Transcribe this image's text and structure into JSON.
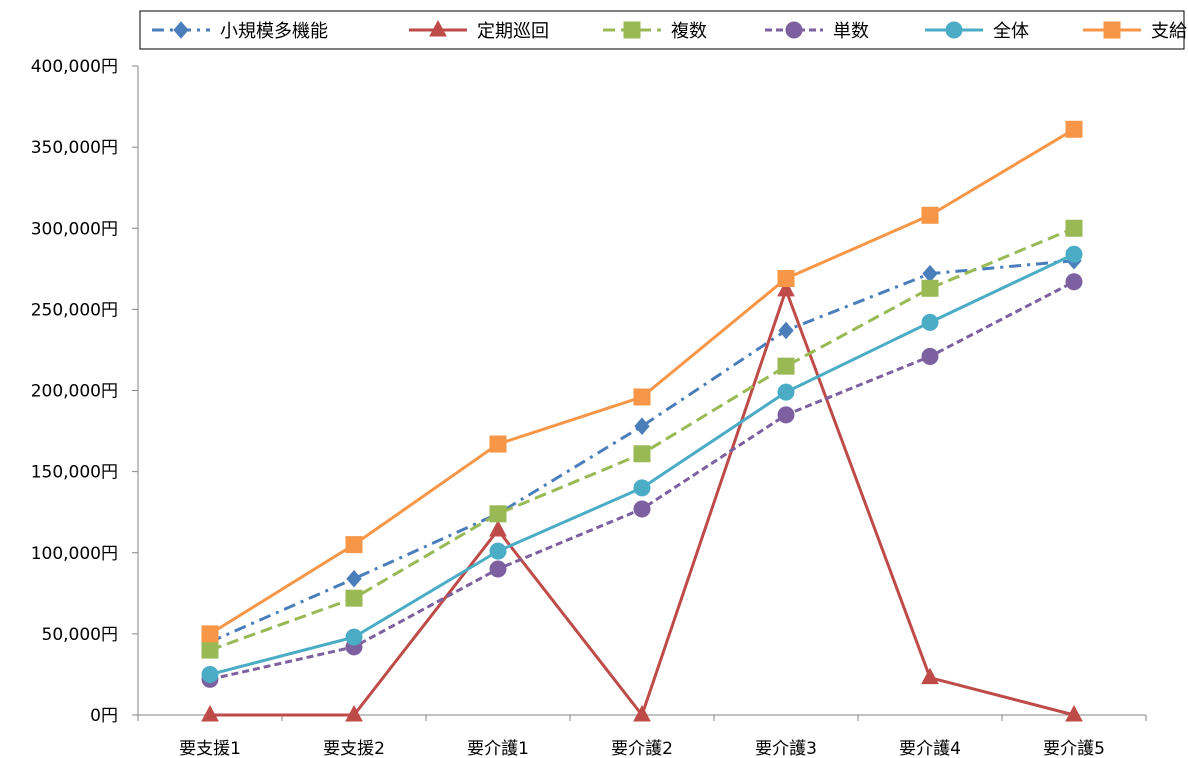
{
  "chart_data": {
    "type": "line",
    "title": "",
    "xlabel": "",
    "ylabel": "",
    "categories": [
      "要支援1",
      "要支援2",
      "要介護1",
      "要介護2",
      "要介護3",
      "要介護4",
      "要介護5"
    ],
    "ylim": [
      0,
      400000
    ],
    "yticks": [
      0,
      50000,
      100000,
      150000,
      200000,
      250000,
      300000,
      350000,
      400000
    ],
    "ytick_labels": [
      "0円",
      "50,000円",
      "100,000円",
      "150,000円",
      "200,000円",
      "250,000円",
      "300,000円",
      "350,000円",
      "400,000円"
    ],
    "grid": false,
    "legend_position": "top",
    "series": [
      {
        "name": "小規模多機能",
        "color": "#4a7ebb",
        "marker": "diamond",
        "dash": "12,6,3,6",
        "values": [
          45000,
          84000,
          124000,
          178000,
          237000,
          272000,
          280000
        ]
      },
      {
        "name": "定期巡回",
        "color": "#be4b48",
        "marker": "triangle",
        "dash": "",
        "values": [
          0,
          0,
          114000,
          0,
          262000,
          23000,
          0
        ]
      },
      {
        "name": "複数",
        "color": "#98b954",
        "marker": "square",
        "dash": "12,6",
        "values": [
          40000,
          72000,
          124000,
          161000,
          215000,
          263000,
          300000
        ]
      },
      {
        "name": "単数",
        "color": "#7d60a0",
        "marker": "circle",
        "dash": "7,4",
        "values": [
          22000,
          42000,
          90000,
          127000,
          185000,
          221000,
          267000
        ]
      },
      {
        "name": "全体",
        "color": "#4bacc6",
        "marker": "circle",
        "dash": "",
        "values": [
          25000,
          48000,
          101000,
          140000,
          199000,
          242000,
          284000
        ]
      },
      {
        "name": "支給限度額",
        "color": "#f79646",
        "marker": "square",
        "dash": "",
        "values": [
          50000,
          105000,
          167000,
          196000,
          269000,
          308000,
          361000
        ]
      }
    ]
  }
}
